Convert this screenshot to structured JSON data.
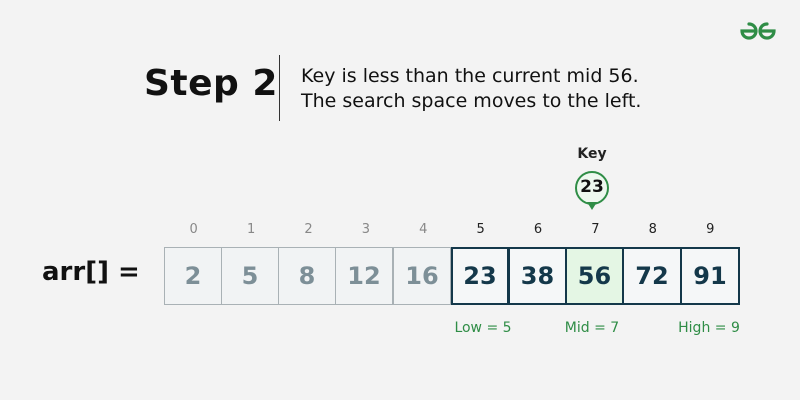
{
  "header": {
    "logo_icon": "gfg-logo-icon",
    "step_title": "Step 2",
    "description_line1": "Key is less than the current mid 56.",
    "description_line2": "The search space moves to the left."
  },
  "key": {
    "label": "Key",
    "value": "23",
    "pin_color": "#2f8d46"
  },
  "array": {
    "label": "arr[] =",
    "indices": [
      "0",
      "1",
      "2",
      "3",
      "4",
      "5",
      "6",
      "7",
      "8",
      "9"
    ],
    "values": [
      "2",
      "5",
      "8",
      "12",
      "16",
      "23",
      "38",
      "56",
      "72",
      "91"
    ],
    "states": [
      "dim",
      "dim",
      "dim",
      "dim",
      "dim",
      "active",
      "active",
      "mid",
      "active",
      "active"
    ]
  },
  "pointers": {
    "low": "Low = 5",
    "mid": "Mid = 7",
    "high": "High = 9",
    "color": "#2f8d46"
  }
}
